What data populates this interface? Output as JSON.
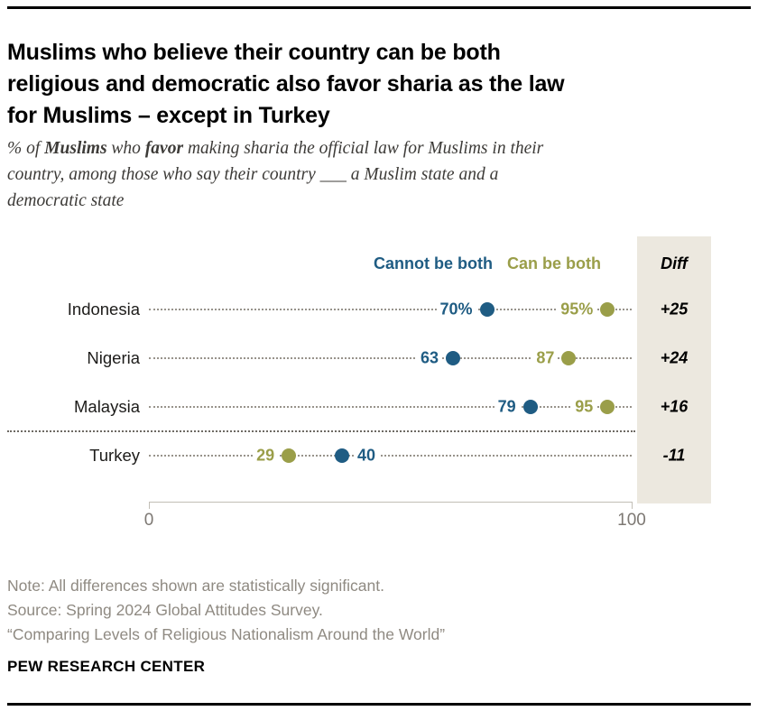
{
  "header": {
    "title_line1": "Muslims who believe their country can be both",
    "title_line2": "religious and democratic also favor sharia as the law",
    "title_line3": "for Muslims – except in Turkey",
    "subtitle": {
      "part1": "% of ",
      "bold1": "Muslims",
      "part2": " who ",
      "bold2": "favor",
      "part3": " making sharia the official law for Muslims in their",
      "line2": "country, among those who say their country ___ a Muslim state and a",
      "line3": "democratic state"
    }
  },
  "chart_data": {
    "type": "scatter",
    "subtype": "dot-plot",
    "title": "Muslims who believe their country can be both religious and democratic also favor sharia as the law for Muslims – except in Turkey",
    "xlabel": "",
    "ylabel": "",
    "xlim": [
      0,
      100
    ],
    "x_tick_labels": [
      "0",
      "100"
    ],
    "grid": false,
    "legend_position": "top",
    "diff_header": "Diff",
    "legend": [
      {
        "key": "cannot",
        "label": "Cannot be both",
        "color": "#1f5c83"
      },
      {
        "key": "can",
        "label": "Can be both",
        "color": "#9a9e49"
      }
    ],
    "separator_after_row": 2,
    "rows": [
      {
        "country": "Indonesia",
        "diff": "+25",
        "points": [
          {
            "series": "cannot",
            "value": 70,
            "label": "70%",
            "side": "left"
          },
          {
            "series": "can",
            "value": 95,
            "label": "95%",
            "side": "left"
          }
        ]
      },
      {
        "country": "Nigeria",
        "diff": "+24",
        "points": [
          {
            "series": "cannot",
            "value": 63,
            "label": "63",
            "side": "left"
          },
          {
            "series": "can",
            "value": 87,
            "label": "87",
            "side": "left"
          }
        ]
      },
      {
        "country": "Malaysia",
        "diff": "+16",
        "points": [
          {
            "series": "cannot",
            "value": 79,
            "label": "79",
            "side": "left"
          },
          {
            "series": "can",
            "value": 95,
            "label": "95",
            "side": "left"
          }
        ]
      },
      {
        "country": "Turkey",
        "diff": "-11",
        "points": [
          {
            "series": "can",
            "value": 29,
            "label": "29",
            "side": "left"
          },
          {
            "series": "cannot",
            "value": 40,
            "label": "40",
            "side": "right"
          }
        ]
      }
    ]
  },
  "colors": {
    "cannot_blue": "#1f5c83",
    "can_olive": "#9a9e49",
    "diff_bg": "#ece8df",
    "axis_gray": "#c2beb6",
    "note_gray": "#8f8a82"
  },
  "footer": {
    "note": "Note: All differences shown are statistically significant.",
    "source": "Source: Spring 2024 Global Attitudes Survey.",
    "citation": "“Comparing Levels of Religious Nationalism Around the World”",
    "brand": "PEW RESEARCH CENTER"
  }
}
